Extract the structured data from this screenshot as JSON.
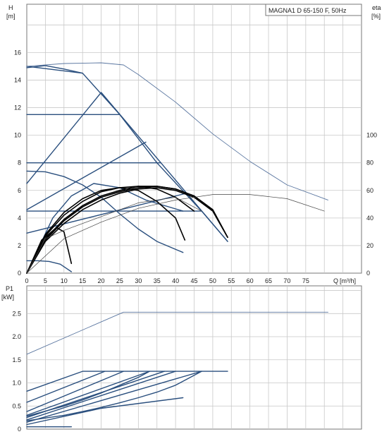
{
  "chart_data": [
    {
      "type": "line",
      "title": "MAGNA1 D 65-150 F, 50Hz",
      "ylabel": "H",
      "yunit": "[m]",
      "y2label": "eta",
      "y2unit": "[%]",
      "xlabel": "Q",
      "xunit": "[m³/h]",
      "xlim": [
        0,
        90
      ],
      "ylim": [
        0,
        19.5
      ],
      "y2lim": [
        0,
        195
      ],
      "grid": true,
      "x_ticks": [
        0,
        5,
        10,
        15,
        20,
        25,
        30,
        35,
        40,
        45,
        50,
        55,
        60,
        65,
        70,
        75
      ],
      "y_ticks": [
        0,
        2,
        4,
        6,
        8,
        10,
        12,
        14,
        16
      ],
      "y2_ticks": [
        0,
        20,
        40,
        60,
        80,
        100
      ],
      "series": [
        {
          "kind": "head-max",
          "color": "#2a4f7e",
          "width": 1.4,
          "points": [
            [
              0,
              15
            ],
            [
              15,
              14.5
            ],
            [
              25,
              11.5
            ],
            [
              35,
              8
            ],
            [
              47,
              4.5
            ],
            [
              54,
              2.3
            ]
          ]
        },
        {
          "kind": "head-const-pressure",
          "color": "#2a4f7e",
          "width": 1.4,
          "points": [
            [
              0,
              11.5
            ],
            [
              25,
              11.5
            ]
          ]
        },
        {
          "kind": "head-const-pressure",
          "color": "#2a4f7e",
          "width": 1.4,
          "points": [
            [
              0,
              8
            ],
            [
              36,
              8
            ]
          ]
        },
        {
          "kind": "head-const-pressure",
          "color": "#2a4f7e",
          "width": 1.4,
          "points": [
            [
              0,
              4.5
            ],
            [
              47,
              4.5
            ]
          ]
        },
        {
          "kind": "head-prop-pressure",
          "color": "#2a4f7e",
          "width": 1.4,
          "points": [
            [
              0,
              6.5
            ],
            [
              20,
              13.1
            ],
            [
              54,
              2.3
            ]
          ]
        },
        {
          "kind": "head-prop-pressure",
          "color": "#2a4f7e",
          "width": 1.4,
          "points": [
            [
              0,
              4.6
            ],
            [
              32,
              9.5
            ]
          ]
        },
        {
          "kind": "head-prop-pressure",
          "color": "#2a4f7e",
          "width": 1.4,
          "points": [
            [
              0,
              2.9
            ],
            [
              43,
              5.8
            ]
          ]
        },
        {
          "kind": "head-autoadapt",
          "color": "#2a4f7e",
          "width": 1.4,
          "points": [
            [
              0,
              0
            ],
            [
              7,
              4
            ],
            [
              12,
              5.6
            ],
            [
              18,
              6.5
            ],
            [
              25,
              6.2
            ],
            [
              32,
              5.3
            ],
            [
              42,
              4.5
            ]
          ]
        },
        {
          "kind": "head-min",
          "color": "#2a4f7e",
          "width": 1.4,
          "points": [
            [
              0,
              7.4
            ],
            [
              5,
              7.35
            ],
            [
              10,
              7.0
            ],
            [
              15,
              6.4
            ],
            [
              20,
              5.5
            ],
            [
              25,
              4.3
            ],
            [
              30,
              3.2
            ],
            [
              35,
              2.3
            ],
            [
              42,
              1.5
            ]
          ]
        },
        {
          "kind": "head-min",
          "color": "#2a4f7e",
          "width": 1.4,
          "points": [
            [
              0,
              0.9
            ],
            [
              3,
              0.9
            ],
            [
              6,
              0.85
            ],
            [
              9,
              0.65
            ],
            [
              12,
              0.1
            ]
          ]
        },
        {
          "kind": "head-curve-top",
          "color": "#2a4f7e",
          "width": 1.4,
          "points": [
            [
              0,
              14.9
            ],
            [
              5,
              15.05
            ],
            [
              10,
              14.8
            ],
            [
              15,
              14.5
            ]
          ]
        },
        {
          "kind": "eta",
          "color": "#000000",
          "width": 1.6,
          "points": [
            [
              0,
              0
            ],
            [
              5,
              28
            ],
            [
              10,
              44
            ],
            [
              15,
              54
            ],
            [
              20,
              60
            ],
            [
              25,
              62
            ],
            [
              30,
              60
            ],
            [
              35,
              52
            ],
            [
              40,
              40
            ],
            [
              42.5,
              24
            ]
          ]
        },
        {
          "kind": "eta",
          "color": "#000000",
          "width": 1.6,
          "points": [
            [
              0,
              0
            ],
            [
              5,
              27
            ],
            [
              10,
              42
            ],
            [
              15,
              52
            ],
            [
              20,
              59
            ],
            [
              25,
              62
            ],
            [
              30,
              63
            ],
            [
              35,
              61
            ],
            [
              40,
              55
            ],
            [
              45,
              45
            ]
          ]
        },
        {
          "kind": "eta",
          "color": "#000000",
          "width": 1.6,
          "points": [
            [
              0,
              0
            ],
            [
              5,
              25
            ],
            [
              10,
              39
            ],
            [
              15,
              49
            ],
            [
              20,
              56
            ],
            [
              25,
              60
            ],
            [
              30,
              63
            ],
            [
              35,
              63
            ],
            [
              40,
              61
            ],
            [
              45,
              56
            ],
            [
              50,
              46
            ],
            [
              54,
              26
            ]
          ]
        },
        {
          "kind": "eta",
          "color": "#000000",
          "width": 1.6,
          "points": [
            [
              0,
              0
            ],
            [
              5,
              24
            ],
            [
              10,
              38
            ],
            [
              15,
              48
            ],
            [
              20,
              55
            ],
            [
              25,
              59
            ],
            [
              30,
              62
            ],
            [
              35,
              63
            ],
            [
              40,
              61
            ],
            [
              45,
              56
            ],
            [
              50,
              46
            ],
            [
              54,
              26
            ]
          ]
        },
        {
          "kind": "eta",
          "color": "#000000",
          "width": 1.6,
          "points": [
            [
              0,
              0
            ],
            [
              5,
              23
            ],
            [
              10,
              36
            ],
            [
              15,
              46
            ],
            [
              20,
              53
            ],
            [
              25,
              58
            ],
            [
              30,
              61
            ],
            [
              35,
              62
            ],
            [
              40,
              60
            ],
            [
              45,
              55
            ],
            [
              50,
              45
            ],
            [
              54,
              26
            ]
          ]
        },
        {
          "kind": "eta",
          "color": "#000000",
          "width": 1.6,
          "points": [
            [
              0,
              0
            ],
            [
              4,
              24
            ],
            [
              8,
              33
            ],
            [
              10,
              30
            ],
            [
              12,
              7
            ]
          ]
        },
        {
          "kind": "eta-thin",
          "color": "#444444",
          "width": 0.7,
          "points": [
            [
              0,
              0
            ],
            [
              10,
              25
            ],
            [
              20,
              37
            ],
            [
              30,
              47
            ],
            [
              40,
              53
            ],
            [
              50,
              57
            ],
            [
              60,
              57
            ],
            [
              70,
              54
            ],
            [
              80,
              45
            ]
          ]
        },
        {
          "kind": "eta-thin",
          "color": "#444444",
          "width": 0.7,
          "points": [
            [
              0,
              0
            ],
            [
              5,
              25
            ],
            [
              10,
              31
            ],
            [
              20,
              41
            ],
            [
              30,
              51
            ],
            [
              40,
              55
            ],
            [
              47,
              45
            ]
          ]
        },
        {
          "kind": "head-max-thin",
          "color": "#5a76a0",
          "width": 0.9,
          "points": [
            [
              0,
              15
            ],
            [
              10,
              15.2
            ],
            [
              20,
              15.25
            ],
            [
              26,
              15.1
            ],
            [
              30,
              14.4
            ],
            [
              40,
              12.4
            ],
            [
              50,
              10.1
            ],
            [
              60,
              8.1
            ],
            [
              70,
              6.4
            ],
            [
              81,
              5.3
            ]
          ]
        }
      ]
    },
    {
      "type": "line",
      "ylabel": "P1",
      "yunit": "[kW]",
      "xlim": [
        0,
        90
      ],
      "ylim": [
        0,
        3.1
      ],
      "grid": true,
      "y_ticks": [
        0,
        0.5,
        1.0,
        1.5,
        2.0,
        2.5
      ],
      "y_tick_labels": [
        "0",
        "0.5",
        "1.0",
        "1.5",
        "2.0",
        "2.5"
      ],
      "series": [
        {
          "kind": "p1-max-thin",
          "color": "#5a76a0",
          "width": 0.9,
          "points": [
            [
              0,
              1.62
            ],
            [
              26,
              2.53
            ],
            [
              81,
              2.53
            ]
          ]
        },
        {
          "kind": "p1-max",
          "color": "#2a4f7e",
          "width": 1.4,
          "points": [
            [
              0,
              0.82
            ],
            [
              15,
              1.25
            ],
            [
              54,
              1.25
            ]
          ]
        },
        {
          "kind": "p1",
          "color": "#2a4f7e",
          "width": 1.4,
          "points": [
            [
              0,
              0.58
            ],
            [
              21,
              1.25
            ]
          ]
        },
        {
          "kind": "p1",
          "color": "#2a4f7e",
          "width": 1.4,
          "points": [
            [
              0,
              0.38
            ],
            [
              26,
              1.25
            ]
          ]
        },
        {
          "kind": "p1",
          "color": "#2a4f7e",
          "width": 1.4,
          "points": [
            [
              0,
              0.3
            ],
            [
              33,
              1.25
            ]
          ]
        },
        {
          "kind": "p1",
          "color": "#2a4f7e",
          "width": 1.4,
          "points": [
            [
              0,
              0.25
            ],
            [
              37,
              1.25
            ]
          ]
        },
        {
          "kind": "p1",
          "color": "#2a4f7e",
          "width": 1.4,
          "points": [
            [
              0,
              0.2
            ],
            [
              40,
              1.25
            ]
          ]
        },
        {
          "kind": "p1",
          "color": "#2a4f7e",
          "width": 1.4,
          "points": [
            [
              0,
              0.15
            ],
            [
              47,
              1.25
            ]
          ]
        },
        {
          "kind": "p1",
          "color": "#2a4f7e",
          "width": 1.4,
          "points": [
            [
              0,
              0.1
            ],
            [
              20,
              0.45
            ],
            [
              42,
              0.68
            ]
          ]
        },
        {
          "kind": "p1",
          "color": "#2a4f7e",
          "width": 1.4,
          "points": [
            [
              0,
              0.05
            ],
            [
              12,
              0.05
            ]
          ]
        },
        {
          "kind": "p1-curve",
          "color": "#2a4f7e",
          "width": 1.4,
          "points": [
            [
              0,
              0.18
            ],
            [
              10,
              0.3
            ],
            [
              15,
              0.38
            ],
            [
              20,
              0.47
            ],
            [
              25,
              0.57
            ],
            [
              30,
              0.68
            ],
            [
              35,
              0.8
            ],
            [
              40,
              0.95
            ],
            [
              47,
              1.25
            ]
          ]
        },
        {
          "kind": "p1-curve",
          "color": "#2a4f7e",
          "width": 1.4,
          "points": [
            [
              0,
              0.28
            ],
            [
              10,
              0.5
            ],
            [
              15,
              0.63
            ],
            [
              20,
              0.78
            ],
            [
              25,
              0.95
            ],
            [
              30,
              1.12
            ],
            [
              33,
              1.25
            ]
          ]
        }
      ]
    }
  ]
}
